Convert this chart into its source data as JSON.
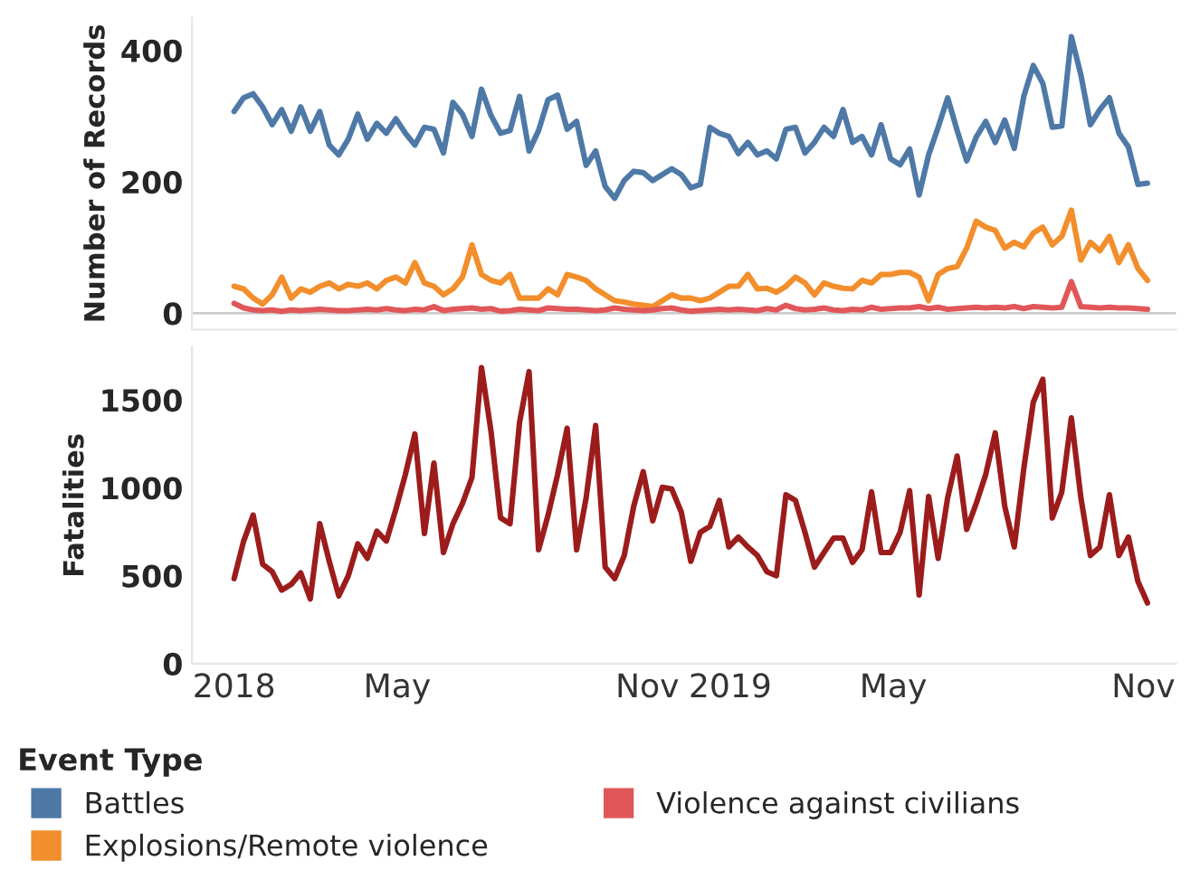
{
  "chart_data": [
    {
      "type": "line",
      "ylabel": "Number of Records",
      "ylim": [
        -25,
        450
      ],
      "yticks": [
        0,
        200,
        400
      ],
      "xlim": [
        "2017-12-01",
        "2019-11-25"
      ],
      "tick_labels": "y",
      "grid": false,
      "legend": "bottom",
      "legend_title": "Event Type",
      "marker": "none",
      "line_style": "solid",
      "ref_lines": [
        {
          "axis": "y",
          "value": 0,
          "color": "#cccccc"
        }
      ],
      "x": [
        "2018-01-01",
        "2018-01-08",
        "2018-01-15",
        "2018-01-22",
        "2018-01-29",
        "2018-02-05",
        "2018-02-12",
        "2018-02-19",
        "2018-02-26",
        "2018-03-05",
        "2018-03-12",
        "2018-03-19",
        "2018-03-26",
        "2018-04-02",
        "2018-04-09",
        "2018-04-16",
        "2018-04-23",
        "2018-04-30",
        "2018-05-07",
        "2018-05-14",
        "2018-05-21",
        "2018-05-28",
        "2018-06-04",
        "2018-06-11",
        "2018-06-18",
        "2018-06-25",
        "2018-07-02",
        "2018-07-09",
        "2018-07-16",
        "2018-07-23",
        "2018-07-30",
        "2018-08-06",
        "2018-08-13",
        "2018-08-20",
        "2018-08-27",
        "2018-09-03",
        "2018-09-10",
        "2018-09-17",
        "2018-09-24",
        "2018-10-01",
        "2018-10-08",
        "2018-10-15",
        "2018-10-22",
        "2018-10-29",
        "2018-11-05",
        "2018-11-12",
        "2018-11-19",
        "2018-11-26",
        "2018-12-03",
        "2018-12-10",
        "2018-12-17",
        "2018-12-24",
        "2018-12-31",
        "2019-01-07",
        "2019-01-14",
        "2019-01-21",
        "2019-01-28",
        "2019-02-04",
        "2019-02-11",
        "2019-02-18",
        "2019-02-25",
        "2019-03-04",
        "2019-03-11",
        "2019-03-18",
        "2019-03-25",
        "2019-04-01",
        "2019-04-08",
        "2019-04-15",
        "2019-04-22",
        "2019-04-29",
        "2019-05-06",
        "2019-05-13",
        "2019-05-20",
        "2019-05-27",
        "2019-06-03",
        "2019-06-10",
        "2019-06-17",
        "2019-06-24",
        "2019-07-01",
        "2019-07-08",
        "2019-07-15",
        "2019-07-22",
        "2019-07-29",
        "2019-08-05",
        "2019-08-12",
        "2019-08-19",
        "2019-08-26",
        "2019-09-02",
        "2019-09-09",
        "2019-09-16",
        "2019-09-23",
        "2019-09-30",
        "2019-10-07",
        "2019-10-14",
        "2019-10-21",
        "2019-10-28",
        "2019-11-04"
      ],
      "series": [
        {
          "name": "Battles",
          "color": "#4e79a7",
          "values": [
            307,
            328,
            334,
            314,
            287,
            310,
            277,
            314,
            277,
            307,
            256,
            241,
            265,
            303,
            265,
            289,
            274,
            296,
            274,
            256,
            283,
            280,
            244,
            321,
            303,
            269,
            341,
            301,
            274,
            278,
            330,
            247,
            278,
            325,
            332,
            280,
            292,
            225,
            247,
            193,
            175,
            202,
            216,
            214,
            202,
            211,
            220,
            211,
            191,
            196,
            283,
            274,
            269,
            243,
            260,
            241,
            247,
            235,
            280,
            283,
            244,
            260,
            283,
            269,
            310,
            260,
            269,
            241,
            287,
            235,
            226,
            250,
            180,
            241,
            283,
            328,
            278,
            232,
            268,
            292,
            260,
            294,
            251,
            330,
            377,
            350,
            283,
            285,
            421,
            363,
            287,
            310,
            328,
            274,
            253,
            196,
            198
          ]
        },
        {
          "name": "Explosions/Remote violence",
          "color": "#f28e2b",
          "values": [
            41,
            37,
            23,
            14,
            28,
            55,
            23,
            37,
            32,
            41,
            46,
            37,
            44,
            41,
            46,
            37,
            50,
            55,
            46,
            77,
            46,
            41,
            28,
            37,
            55,
            104,
            59,
            50,
            46,
            59,
            23,
            23,
            23,
            37,
            28,
            59,
            55,
            50,
            37,
            28,
            19,
            17,
            14,
            12,
            10,
            19,
            28,
            23,
            23,
            19,
            23,
            32,
            41,
            41,
            59,
            37,
            38,
            32,
            41,
            55,
            46,
            28,
            46,
            41,
            38,
            37,
            50,
            46,
            59,
            59,
            62,
            62,
            55,
            19,
            59,
            68,
            71,
            99,
            140,
            131,
            126,
            99,
            108,
            101,
            122,
            131,
            104,
            117,
            157,
            81,
            108,
            95,
            117,
            77,
            104,
            68,
            50
          ]
        },
        {
          "name": "Violence against civilians",
          "color": "#e15759",
          "values": [
            15,
            8,
            5,
            4,
            5,
            3,
            5,
            4,
            5,
            6,
            5,
            4,
            4,
            5,
            6,
            5,
            7,
            5,
            4,
            6,
            5,
            10,
            4,
            6,
            7,
            8,
            6,
            7,
            3,
            4,
            6,
            5,
            4,
            8,
            7,
            6,
            6,
            5,
            4,
            5,
            8,
            6,
            5,
            4,
            5,
            7,
            8,
            5,
            3,
            4,
            5,
            6,
            5,
            6,
            5,
            4,
            7,
            5,
            12,
            7,
            5,
            6,
            8,
            5,
            4,
            6,
            5,
            9,
            6,
            7,
            8,
            8,
            10,
            7,
            9,
            6,
            7,
            8,
            9,
            8,
            9,
            8,
            10,
            7,
            10,
            9,
            8,
            9,
            48,
            10,
            9,
            8,
            9,
            8,
            8,
            7,
            6
          ]
        }
      ]
    },
    {
      "type": "line",
      "ylabel": "Fatalities",
      "ylim": [
        0,
        1800
      ],
      "yticks": [
        0,
        500,
        1000,
        1500
      ],
      "xlim": [
        "2017-12-01",
        "2019-11-25"
      ],
      "xticks": [
        {
          "value": "2018-01-01",
          "label": "2018"
        },
        {
          "value": "2018-05-01",
          "label": "May"
        },
        {
          "value": "2018-11-01",
          "label": "Nov"
        },
        {
          "value": "2019-01-01",
          "label": "2019"
        },
        {
          "value": "2019-05-01",
          "label": "May"
        },
        {
          "value": "2019-11-01",
          "label": "Nov"
        }
      ],
      "grid": false,
      "marker": "none",
      "line_style": "solid",
      "x": [
        "2018-01-01",
        "2018-01-08",
        "2018-01-15",
        "2018-01-22",
        "2018-01-29",
        "2018-02-05",
        "2018-02-12",
        "2018-02-19",
        "2018-02-26",
        "2018-03-05",
        "2018-03-12",
        "2018-03-19",
        "2018-03-26",
        "2018-04-02",
        "2018-04-09",
        "2018-04-16",
        "2018-04-23",
        "2018-04-30",
        "2018-05-07",
        "2018-05-14",
        "2018-05-21",
        "2018-05-28",
        "2018-06-04",
        "2018-06-11",
        "2018-06-18",
        "2018-06-25",
        "2018-07-02",
        "2018-07-09",
        "2018-07-16",
        "2018-07-23",
        "2018-07-30",
        "2018-08-06",
        "2018-08-13",
        "2018-08-20",
        "2018-08-27",
        "2018-09-03",
        "2018-09-10",
        "2018-09-17",
        "2018-09-24",
        "2018-10-01",
        "2018-10-08",
        "2018-10-15",
        "2018-10-22",
        "2018-10-29",
        "2018-11-05",
        "2018-11-12",
        "2018-11-19",
        "2018-11-26",
        "2018-12-03",
        "2018-12-10",
        "2018-12-17",
        "2018-12-24",
        "2018-12-31",
        "2019-01-07",
        "2019-01-14",
        "2019-01-21",
        "2019-01-28",
        "2019-02-04",
        "2019-02-11",
        "2019-02-18",
        "2019-02-25",
        "2019-03-04",
        "2019-03-11",
        "2019-03-18",
        "2019-03-25",
        "2019-04-01",
        "2019-04-08",
        "2019-04-15",
        "2019-04-22",
        "2019-04-29",
        "2019-05-06",
        "2019-05-13",
        "2019-05-20",
        "2019-05-27",
        "2019-06-03",
        "2019-06-10",
        "2019-06-17",
        "2019-06-24",
        "2019-07-01",
        "2019-07-08",
        "2019-07-15",
        "2019-07-22",
        "2019-07-29",
        "2019-08-05",
        "2019-08-12",
        "2019-08-19",
        "2019-08-26",
        "2019-09-02",
        "2019-09-09",
        "2019-09-16",
        "2019-09-23",
        "2019-09-30",
        "2019-10-07",
        "2019-10-14",
        "2019-10-21",
        "2019-10-28",
        "2019-11-04"
      ],
      "series": [
        {
          "color": "#9c1c1c",
          "values": [
            484,
            697,
            845,
            566,
            523,
            418,
            451,
            516,
            368,
            796,
            582,
            385,
            500,
            681,
            599,
            753,
            697,
            878,
            1076,
            1306,
            740,
            1141,
            632,
            796,
            911,
            1059,
            1684,
            1322,
            829,
            796,
            1372,
            1661,
            648,
            845,
            1076,
            1339,
            648,
            944,
            1355,
            549,
            484,
            615,
            895,
            1092,
            812,
            1003,
            993,
            862,
            582,
            747,
            780,
            928,
            664,
            720,
            664,
            615,
            523,
            500,
            961,
            928,
            747,
            549,
            632,
            714,
            714,
            576,
            648,
            977,
            632,
            632,
            747,
            984,
            391,
            951,
            599,
            944,
            1181,
            763,
            911,
            1076,
            1313,
            895,
            664,
            1109,
            1487,
            1618,
            829,
            977,
            1398,
            944,
            615,
            664,
            961,
            615,
            720,
            467,
            345
          ]
        }
      ]
    }
  ]
}
